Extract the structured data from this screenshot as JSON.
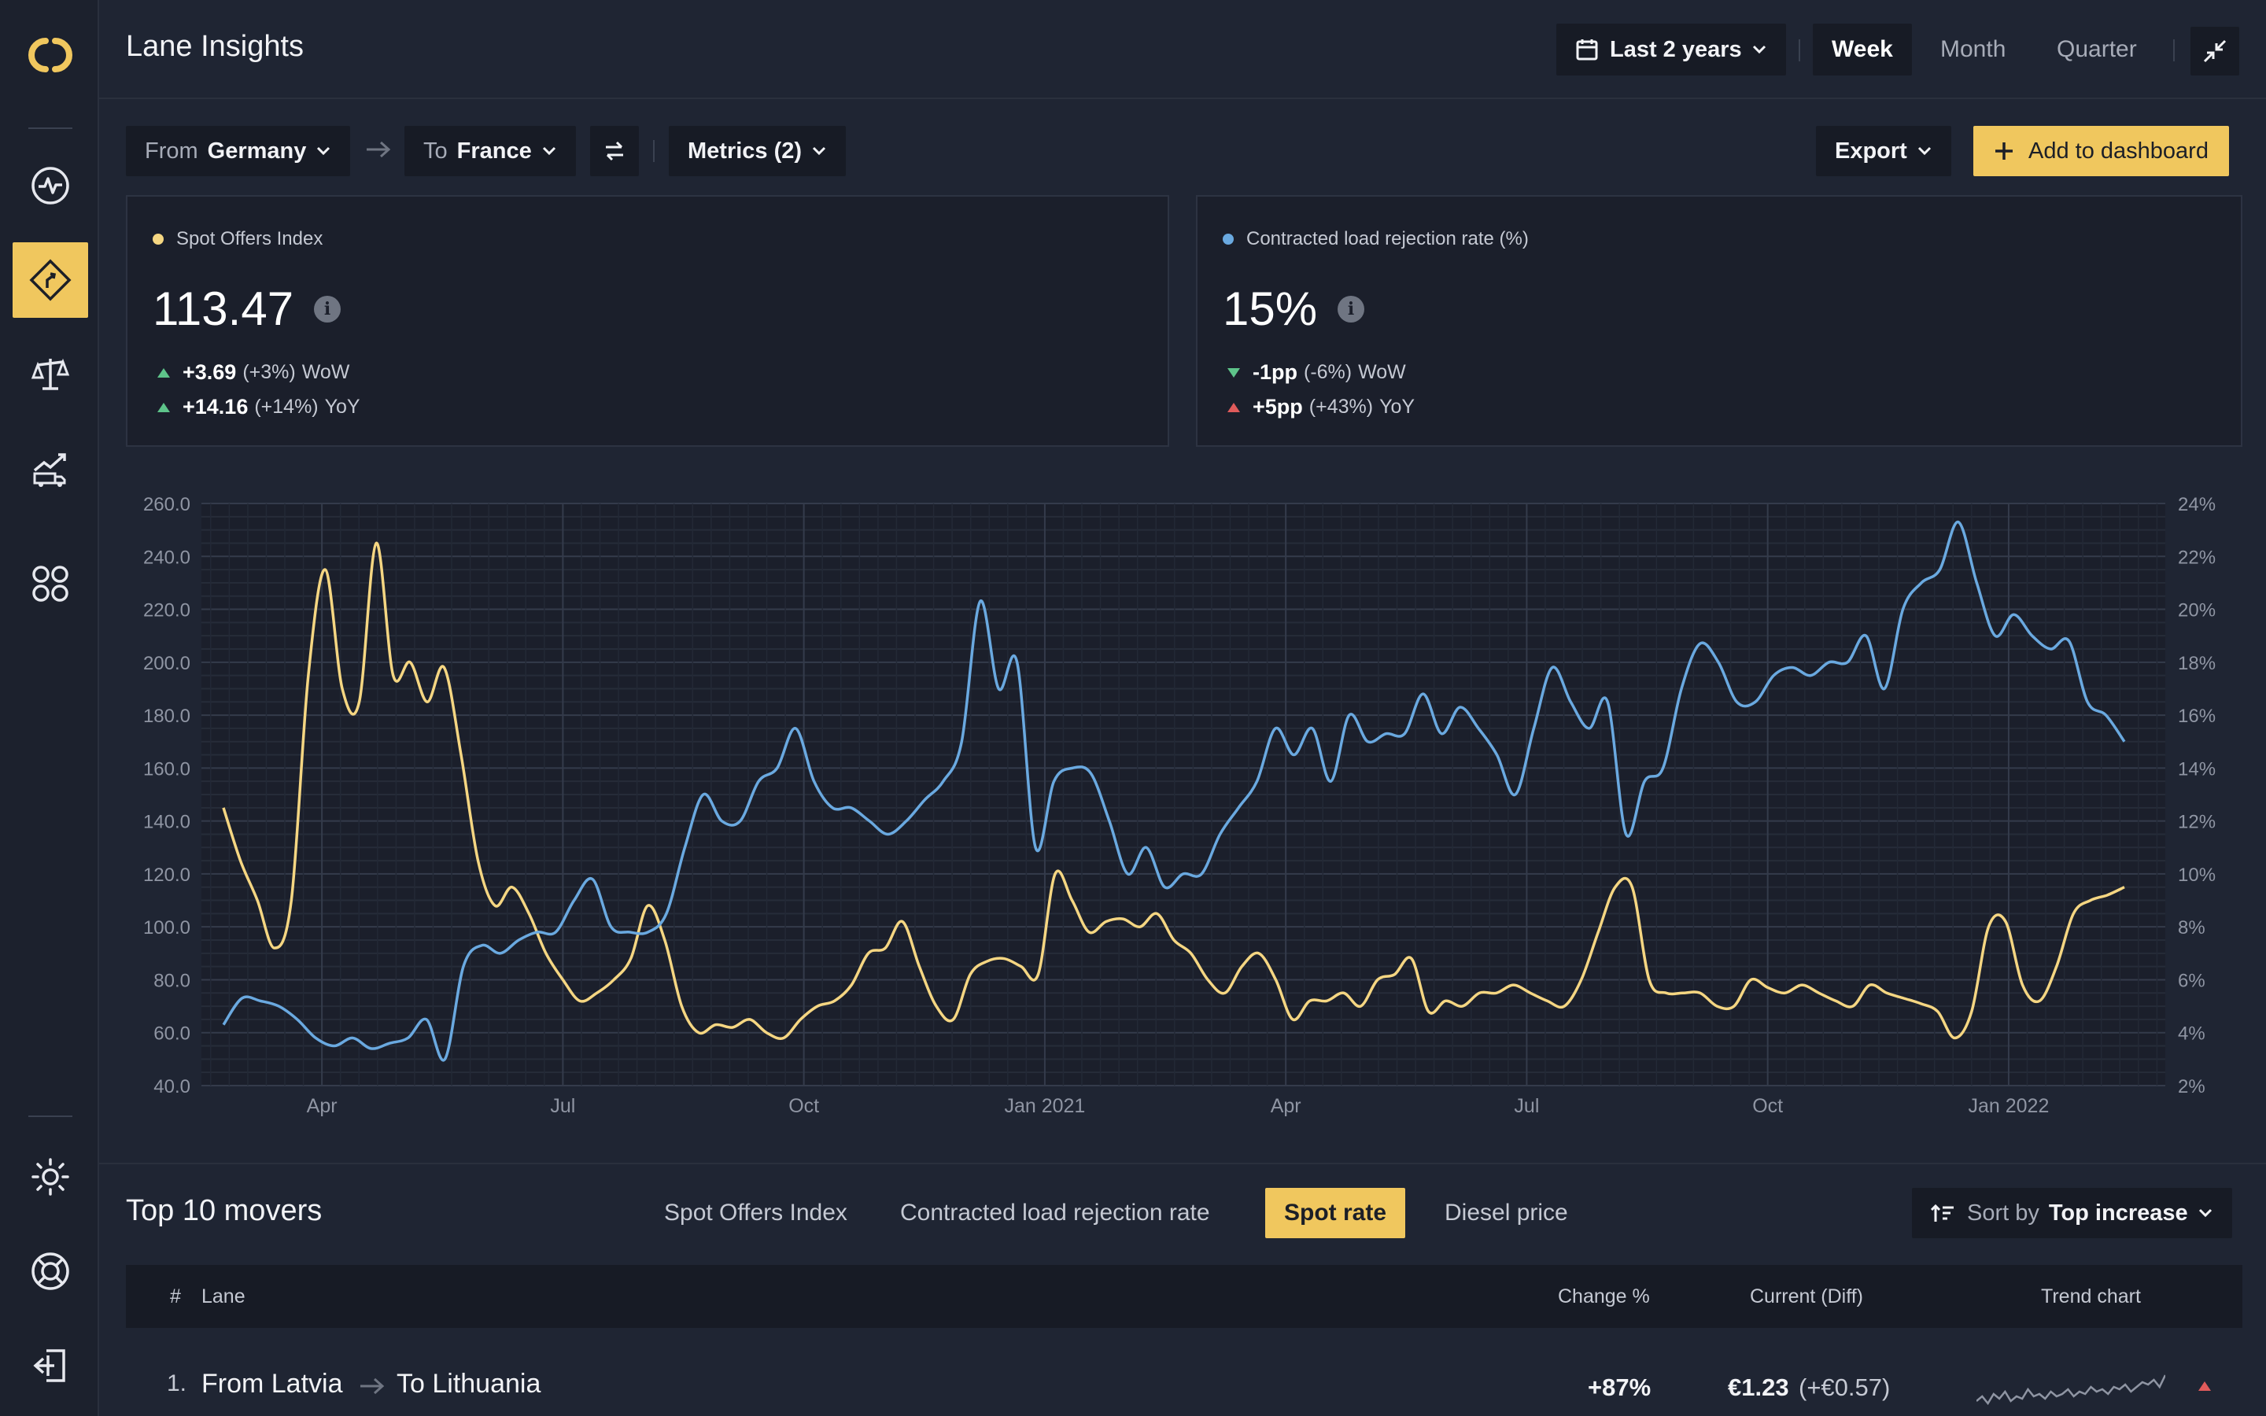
{
  "app": {
    "title": "Lane Insights"
  },
  "sidebar": {
    "items": [
      {
        "name": "logo-icon",
        "active": false
      },
      {
        "name": "pulse-icon",
        "active": false
      },
      {
        "name": "route-sign-icon",
        "active": true
      },
      {
        "name": "scales-icon",
        "active": false
      },
      {
        "name": "truck-trend-icon",
        "active": false
      },
      {
        "name": "apps-grid-icon",
        "active": false
      },
      {
        "name": "sun-icon",
        "active": false
      },
      {
        "name": "lifebuoy-icon",
        "active": false
      },
      {
        "name": "logout-icon",
        "active": false
      }
    ]
  },
  "header": {
    "range_label": "Last 2 years",
    "periods": [
      "Week",
      "Month",
      "Quarter"
    ],
    "active_period": "Week"
  },
  "filters": {
    "from_prefix": "From",
    "from_value": "Germany",
    "to_prefix": "To",
    "to_value": "France",
    "metrics_label": "Metrics (2)",
    "export_label": "Export",
    "add_label": "Add to dashboard"
  },
  "cards": [
    {
      "label": "Spot Offers Index",
      "color": "#f5d682",
      "value": "113.47",
      "wow_value": "+3.69",
      "wow_pct": "(+3%)",
      "wow_suffix": "WoW",
      "yoy_value": "+14.16",
      "yoy_pct": "(+14%)",
      "yoy_suffix": "YoY"
    },
    {
      "label": "Contracted load rejection rate (%)",
      "color": "#6aa9e0",
      "value": "15%",
      "wow_value": "-1pp",
      "wow_pct": "(-6%)",
      "wow_suffix": "WoW",
      "yoy_value": "+5pp",
      "yoy_pct": "(+43%)",
      "yoy_suffix": "YoY"
    }
  ],
  "chart_data": {
    "type": "line",
    "x_ticks": [
      "Apr",
      "Jul",
      "Oct",
      "Jan 2021",
      "Apr",
      "Jul",
      "Oct",
      "Jan 2022"
    ],
    "y_left": {
      "min": 40,
      "max": 260,
      "ticks": [
        "40.0",
        "60.0",
        "80.0",
        "100.0",
        "120.0",
        "140.0",
        "160.0",
        "180.0",
        "200.0",
        "220.0",
        "240.0",
        "260.0"
      ]
    },
    "y_right": {
      "min": 2,
      "max": 24,
      "ticks": [
        "2%",
        "4%",
        "6%",
        "8%",
        "10%",
        "12%",
        "14%",
        "16%",
        "18%",
        "20%",
        "22%",
        "24%"
      ]
    },
    "grid": true,
    "series": [
      {
        "axis": "left",
        "color": "#f5d682",
        "values": [
          145,
          125,
          110,
          92,
          110,
          195,
          235,
          190,
          185,
          245,
          195,
          200,
          185,
          198,
          165,
          125,
          108,
          115,
          105,
          90,
          80,
          72,
          75,
          80,
          88,
          108,
          95,
          70,
          60,
          63,
          62,
          65,
          60,
          58,
          65,
          70,
          72,
          78,
          90,
          92,
          102,
          85,
          70,
          65,
          82,
          87,
          88,
          85,
          82,
          120,
          110,
          98,
          102,
          103,
          100,
          105,
          95,
          90,
          80,
          75,
          85,
          90,
          80,
          65,
          72,
          72,
          75,
          70,
          80,
          82,
          88,
          68,
          72,
          70,
          75,
          75,
          78,
          75,
          72,
          70,
          80,
          98,
          115,
          115,
          80,
          75,
          75,
          75,
          70,
          70,
          80,
          77,
          75,
          78,
          75,
          72,
          70,
          78,
          75,
          73,
          71,
          68,
          58,
          68,
          100,
          102,
          78,
          72,
          85,
          105,
          110,
          112,
          115
        ]
      },
      {
        "axis": "right",
        "color": "#6aa9e0",
        "values": [
          4.3,
          5.3,
          5.2,
          5.0,
          4.5,
          3.8,
          3.5,
          3.8,
          3.4,
          3.6,
          3.8,
          4.5,
          3.0,
          6.5,
          7.3,
          7.0,
          7.5,
          7.8,
          7.8,
          9.0,
          9.8,
          8.0,
          7.8,
          7.8,
          8.5,
          11.0,
          13.0,
          12.0,
          12.0,
          13.5,
          14.0,
          15.5,
          13.5,
          12.5,
          12.5,
          12.0,
          11.5,
          12.0,
          12.8,
          13.5,
          15.0,
          20.3,
          17.0,
          18.0,
          11.0,
          13.5,
          14.0,
          13.8,
          12.0,
          10.0,
          11.0,
          9.5,
          10.0,
          10.0,
          11.5,
          12.5,
          13.5,
          15.5,
          14.5,
          15.5,
          13.5,
          16.0,
          15.0,
          15.3,
          15.3,
          16.8,
          15.3,
          16.3,
          15.5,
          14.5,
          13.0,
          15.5,
          17.8,
          16.5,
          15.5,
          16.5,
          11.5,
          13.5,
          14.0,
          17.0,
          18.7,
          18.0,
          16.5,
          16.5,
          17.5,
          17.8,
          17.5,
          18.0,
          18.0,
          19.0,
          17.0,
          20.0,
          21.0,
          21.5,
          23.3,
          21.0,
          19.0,
          19.8,
          19.0,
          18.5,
          18.8,
          16.5,
          16.0,
          15.0
        ]
      }
    ]
  },
  "movers": {
    "title": "Top 10 movers",
    "tabs": [
      "Spot Offers Index",
      "Contracted load rejection rate",
      "Spot rate",
      "Diesel price"
    ],
    "active_tab": "Spot rate",
    "sort_prefix": "Sort by",
    "sort_value": "Top increase",
    "columns": [
      "#",
      "Lane",
      "Change %",
      "Current (Diff)",
      "Trend chart"
    ],
    "rows": [
      {
        "rank": "1.",
        "from": "From Latvia",
        "to": "To Lithuania",
        "change": "+87%",
        "current": "€1.23",
        "diff": "(+€0.57)",
        "trend": [
          4,
          6,
          3,
          7,
          5,
          8,
          4,
          6,
          5,
          9,
          6,
          7,
          5,
          8,
          6,
          7,
          9,
          6,
          8,
          7,
          10,
          8,
          9,
          7,
          10,
          9,
          11,
          8,
          10,
          12,
          11,
          13,
          10,
          15
        ]
      }
    ]
  }
}
